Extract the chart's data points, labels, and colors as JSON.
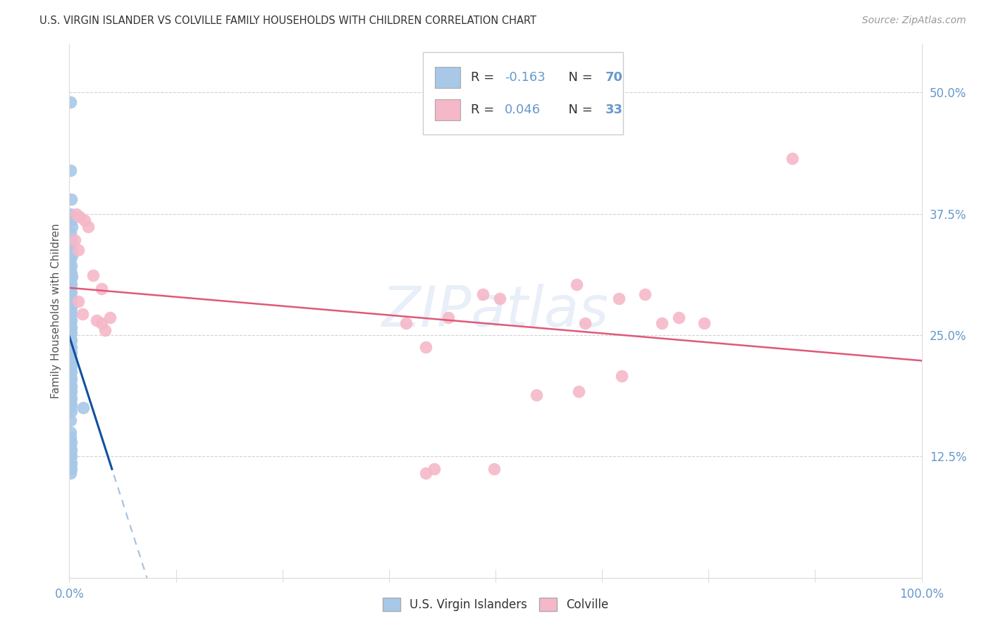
{
  "title": "U.S. VIRGIN ISLANDER VS COLVILLE FAMILY HOUSEHOLDS WITH CHILDREN CORRELATION CHART",
  "source": "Source: ZipAtlas.com",
  "ylabel": "Family Households with Children",
  "legend_label_blue": "U.S. Virgin Islanders",
  "legend_label_pink": "Colville",
  "r_blue": -0.163,
  "n_blue": 70,
  "r_pink": 0.046,
  "n_pink": 33,
  "blue_color": "#a8c8e8",
  "pink_color": "#f5b8c8",
  "blue_line_color": "#1050a0",
  "pink_line_color": "#e05878",
  "blue_points": [
    [
      0.001,
      0.49
    ],
    [
      0.001,
      0.42
    ],
    [
      0.002,
      0.39
    ],
    [
      0.001,
      0.375
    ],
    [
      0.002,
      0.368
    ],
    [
      0.003,
      0.362
    ],
    [
      0.001,
      0.355
    ],
    [
      0.002,
      0.348
    ],
    [
      0.001,
      0.342
    ],
    [
      0.002,
      0.338
    ],
    [
      0.003,
      0.332
    ],
    [
      0.001,
      0.328
    ],
    [
      0.002,
      0.322
    ],
    [
      0.001,
      0.318
    ],
    [
      0.002,
      0.314
    ],
    [
      0.003,
      0.31
    ],
    [
      0.001,
      0.306
    ],
    [
      0.002,
      0.302
    ],
    [
      0.001,
      0.298
    ],
    [
      0.002,
      0.294
    ],
    [
      0.001,
      0.29
    ],
    [
      0.002,
      0.286
    ],
    [
      0.001,
      0.282
    ],
    [
      0.002,
      0.278
    ],
    [
      0.001,
      0.275
    ],
    [
      0.002,
      0.272
    ],
    [
      0.001,
      0.268
    ],
    [
      0.002,
      0.265
    ],
    [
      0.001,
      0.262
    ],
    [
      0.002,
      0.258
    ],
    [
      0.001,
      0.255
    ],
    [
      0.002,
      0.252
    ],
    [
      0.001,
      0.248
    ],
    [
      0.002,
      0.245
    ],
    [
      0.001,
      0.242
    ],
    [
      0.002,
      0.238
    ],
    [
      0.001,
      0.235
    ],
    [
      0.002,
      0.232
    ],
    [
      0.001,
      0.228
    ],
    [
      0.002,
      0.225
    ],
    [
      0.001,
      0.222
    ],
    [
      0.002,
      0.218
    ],
    [
      0.001,
      0.215
    ],
    [
      0.002,
      0.212
    ],
    [
      0.001,
      0.208
    ],
    [
      0.002,
      0.205
    ],
    [
      0.001,
      0.202
    ],
    [
      0.002,
      0.198
    ],
    [
      0.001,
      0.195
    ],
    [
      0.002,
      0.192
    ],
    [
      0.001,
      0.188
    ],
    [
      0.002,
      0.185
    ],
    [
      0.001,
      0.182
    ],
    [
      0.002,
      0.178
    ],
    [
      0.001,
      0.175
    ],
    [
      0.002,
      0.172
    ],
    [
      0.016,
      0.175
    ],
    [
      0.001,
      0.162
    ],
    [
      0.001,
      0.15
    ],
    [
      0.001,
      0.145
    ],
    [
      0.002,
      0.14
    ],
    [
      0.001,
      0.135
    ],
    [
      0.002,
      0.132
    ],
    [
      0.001,
      0.128
    ],
    [
      0.002,
      0.125
    ],
    [
      0.001,
      0.12
    ],
    [
      0.002,
      0.118
    ],
    [
      0.001,
      0.115
    ],
    [
      0.002,
      0.112
    ],
    [
      0.001,
      0.108
    ]
  ],
  "pink_points": [
    [
      0.008,
      0.375
    ],
    [
      0.012,
      0.372
    ],
    [
      0.018,
      0.368
    ],
    [
      0.022,
      0.362
    ],
    [
      0.006,
      0.348
    ],
    [
      0.01,
      0.338
    ],
    [
      0.028,
      0.312
    ],
    [
      0.038,
      0.298
    ],
    [
      0.01,
      0.285
    ],
    [
      0.015,
      0.272
    ],
    [
      0.032,
      0.265
    ],
    [
      0.038,
      0.262
    ],
    [
      0.042,
      0.255
    ],
    [
      0.048,
      0.268
    ],
    [
      0.395,
      0.262
    ],
    [
      0.445,
      0.268
    ],
    [
      0.485,
      0.292
    ],
    [
      0.505,
      0.288
    ],
    [
      0.595,
      0.302
    ],
    [
      0.605,
      0.262
    ],
    [
      0.645,
      0.288
    ],
    [
      0.675,
      0.292
    ],
    [
      0.695,
      0.262
    ],
    [
      0.715,
      0.268
    ],
    [
      0.745,
      0.262
    ],
    [
      0.648,
      0.208
    ],
    [
      0.598,
      0.192
    ],
    [
      0.548,
      0.188
    ],
    [
      0.498,
      0.112
    ],
    [
      0.428,
      0.112
    ],
    [
      0.418,
      0.108
    ],
    [
      0.848,
      0.432
    ],
    [
      0.418,
      0.238
    ]
  ],
  "xlim": [
    0,
    1.0
  ],
  "ylim": [
    0,
    0.55
  ],
  "yticks": [
    0.0,
    0.125,
    0.25,
    0.375,
    0.5
  ],
  "ytick_labels": [
    "",
    "12.5%",
    "25.0%",
    "37.5%",
    "50.0%"
  ],
  "xtick_left": "0.0%",
  "xtick_right": "100.0%",
  "tick_color": "#6699cc",
  "grid_color": "#cccccc",
  "title_fontsize": 10.5,
  "source_fontsize": 10,
  "ylabel_fontsize": 11,
  "legend_fontsize": 13
}
